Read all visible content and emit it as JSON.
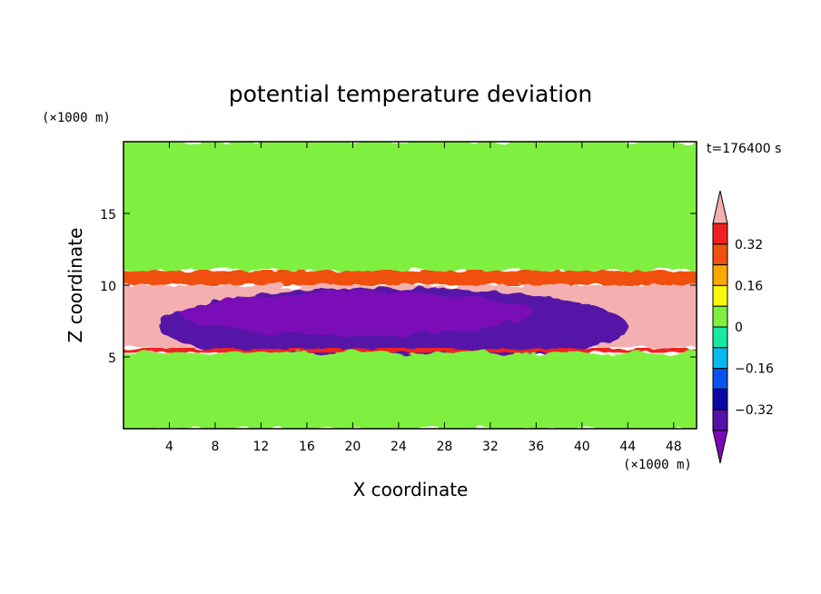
{
  "chart_data": {
    "type": "heatmap",
    "title": "potential temperature deviation",
    "xlabel": "X coordinate",
    "ylabel": "Z coordinate",
    "x_unit": "(×1000 m)",
    "y_unit": "(×1000 m)",
    "time_label": "t=176400 s",
    "xlim": [
      0,
      50
    ],
    "ylim": [
      0,
      20
    ],
    "x_ticks": [
      "4",
      "8",
      "12",
      "16",
      "20",
      "24",
      "28",
      "32",
      "36",
      "40",
      "44",
      "48"
    ],
    "y_ticks": [
      "5",
      "10",
      "15"
    ],
    "colorbar": {
      "levels": [
        -0.48,
        -0.4,
        -0.32,
        -0.24,
        -0.16,
        -0.08,
        0,
        0.08,
        0.16,
        0.24,
        0.32,
        0.4
      ],
      "labels": [
        "0.32",
        "0.16",
        "0",
        "−0.16",
        "−0.32"
      ],
      "colors": [
        "#7a0ab8",
        "#5512a8",
        "#0c08a8",
        "#0852f0",
        "#08b8f0",
        "#18e8a0",
        "#80f040",
        "#f8f810",
        "#f8a800",
        "#f05010",
        "#f02020",
        "#f4b0b0"
      ],
      "extend": "both"
    },
    "fields": [
      {
        "label": "upper layer",
        "z_from": 11,
        "z_to": 20,
        "value": 0.04
      },
      {
        "label": "inversion band",
        "z_from": 10,
        "z_to": 11,
        "value": 0.26
      },
      {
        "label": "warm layer",
        "z_from": 5.6,
        "z_to": 10,
        "value": 0.45
      },
      {
        "label": "cold cloud region",
        "x_from": 3,
        "x_to": 44,
        "z_from": 4.5,
        "z_to": 9.8,
        "value": -0.36
      },
      {
        "label": "core",
        "x_from": 5,
        "x_to": 36,
        "z_from": 6.5,
        "z_to": 9.5,
        "value": -0.44
      },
      {
        "label": "warm line",
        "z_from": 5.3,
        "z_to": 5.6,
        "value": 0.36
      },
      {
        "label": "lower layer",
        "z_from": 0,
        "z_to": 5.3,
        "value": 0.02
      }
    ]
  }
}
